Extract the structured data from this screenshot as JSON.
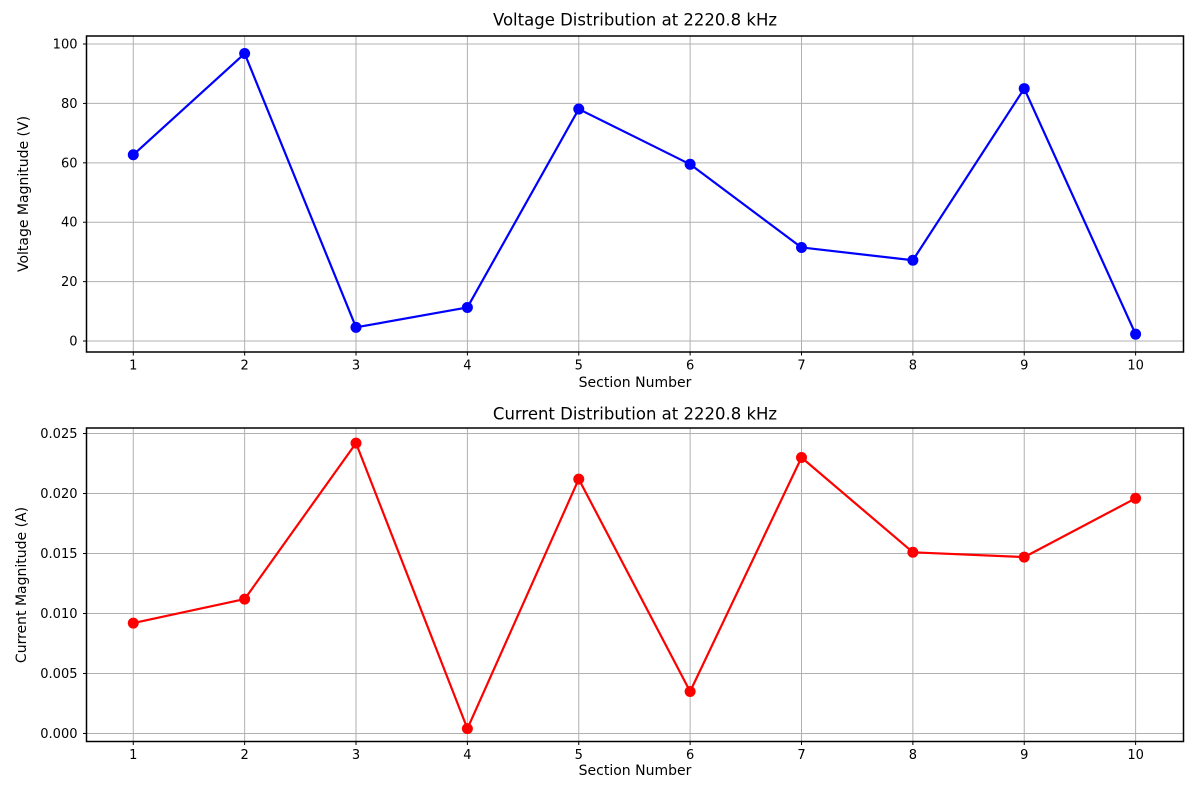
{
  "figure": {
    "background": "#ffffff",
    "grid_color": "#b0b0b0",
    "spine_color": "#000000",
    "text_color": "#000000"
  },
  "chart_data": [
    {
      "type": "line",
      "title": "Voltage Distribution at 2220.8 kHz",
      "xlabel": "Section Number",
      "ylabel": "Voltage Magnitude (V)",
      "line_color": "#0000ff",
      "marker": "circle",
      "grid": true,
      "legend": "none",
      "x": [
        1,
        2,
        3,
        4,
        5,
        6,
        7,
        8,
        9,
        10
      ],
      "values": [
        62.7,
        96.8,
        4.6,
        11.3,
        78.1,
        59.5,
        31.5,
        27.2,
        85.0,
        2.3
      ],
      "xlim": [
        0.58,
        10.43
      ],
      "ylim": [
        -3.7,
        102.7
      ],
      "xticks": [
        1,
        2,
        3,
        4,
        5,
        6,
        7,
        8,
        9,
        10
      ],
      "xtick_labels": [
        "1",
        "2",
        "3",
        "4",
        "5",
        "6",
        "7",
        "8",
        "9",
        "10"
      ],
      "yticks": [
        0,
        20,
        40,
        60,
        80,
        100
      ],
      "ytick_labels": [
        "0",
        "20",
        "40",
        "60",
        "80",
        "100"
      ]
    },
    {
      "type": "line",
      "title": "Current Distribution at 2220.8 kHz",
      "xlabel": "Section Number",
      "ylabel": "Current Magnitude (A)",
      "line_color": "#ff0000",
      "marker": "circle",
      "grid": true,
      "legend": "none",
      "x": [
        1,
        2,
        3,
        4,
        5,
        6,
        7,
        8,
        9,
        10
      ],
      "values": [
        0.0092,
        0.0112,
        0.0242,
        0.0004,
        0.0212,
        0.0035,
        0.023,
        0.0151,
        0.0147,
        0.0196
      ],
      "xlim": [
        0.58,
        10.43
      ],
      "ylim": [
        -0.00067,
        0.02546
      ],
      "xticks": [
        1,
        2,
        3,
        4,
        5,
        6,
        7,
        8,
        9,
        10
      ],
      "xtick_labels": [
        "1",
        "2",
        "3",
        "4",
        "5",
        "6",
        "7",
        "8",
        "9",
        "10"
      ],
      "yticks": [
        0.0,
        0.005,
        0.01,
        0.015,
        0.02,
        0.025
      ],
      "ytick_labels": [
        "0.000",
        "0.005",
        "0.010",
        "0.015",
        "0.020",
        "0.025"
      ]
    }
  ]
}
